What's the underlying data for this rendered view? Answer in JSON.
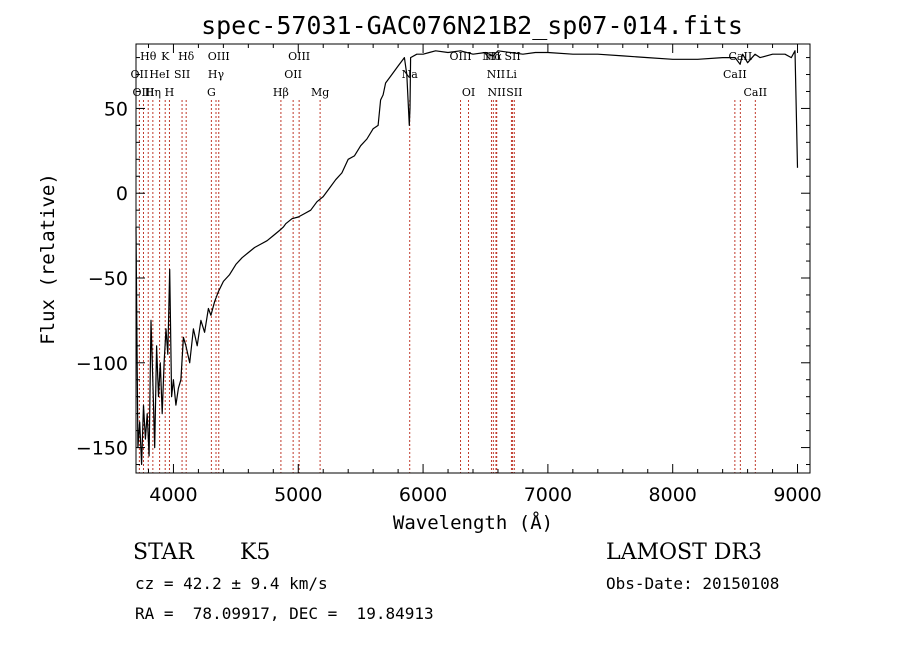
{
  "chart_data": {
    "type": "line",
    "title": "spec-57031-GAC076N21B2_sp07-014.fits",
    "xlabel": "Wavelength (Å)",
    "ylabel": "Flux (relative)",
    "xlim": [
      3700,
      9100
    ],
    "ylim": [
      -165,
      88
    ],
    "xticks": [
      4000,
      5000,
      6000,
      7000,
      8000,
      9000
    ],
    "yticks": [
      -150,
      -100,
      -50,
      0,
      50
    ],
    "series": [
      {
        "x": [
          3700,
          3715,
          3730,
          3745,
          3760,
          3775,
          3790,
          3805,
          3820,
          3835,
          3850,
          3865,
          3880,
          3895,
          3910,
          3925,
          3940,
          3955,
          3970,
          3985,
          4000,
          4020,
          4040,
          4060,
          4080,
          4100,
          4130,
          4160,
          4190,
          4220,
          4250,
          4280,
          4300,
          4330,
          4360,
          4400,
          4450,
          4500,
          4550,
          4600,
          4650,
          4700,
          4750,
          4800,
          4850,
          4880,
          4900,
          4950,
          5000,
          5050,
          5100,
          5150,
          5200,
          5250,
          5300,
          5350,
          5400,
          5450,
          5500,
          5550,
          5600,
          5640,
          5660,
          5680,
          5700,
          5750,
          5800,
          5850,
          5870,
          5890,
          5895,
          5900,
          5950,
          6000,
          6050,
          6100,
          6200,
          6300,
          6400,
          6500,
          6560,
          6600,
          6700,
          6800,
          6900,
          7000,
          7200,
          7400,
          7600,
          7800,
          8000,
          8200,
          8400,
          8500,
          8540,
          8560,
          8600,
          8660,
          8700,
          8800,
          8900,
          8950,
          8980,
          9000
        ],
        "values": [
          -20,
          -150,
          -135,
          -160,
          -125,
          -145,
          -130,
          -155,
          -75,
          -110,
          -150,
          -90,
          -120,
          -100,
          -130,
          -100,
          -80,
          -95,
          -45,
          -120,
          -110,
          -125,
          -115,
          -110,
          -85,
          -90,
          -100,
          -80,
          -90,
          -75,
          -82,
          -68,
          -72,
          -64,
          -58,
          -52,
          -48,
          -42,
          -38,
          -35,
          -32,
          -30,
          -28,
          -25,
          -22,
          -20,
          -18,
          -15,
          -14,
          -12,
          -10,
          -5,
          -2,
          3,
          8,
          12,
          20,
          22,
          28,
          32,
          38,
          40,
          55,
          58,
          65,
          70,
          75,
          80,
          70,
          40,
          50,
          80,
          82,
          82,
          83,
          84,
          83,
          84,
          82,
          83,
          81,
          84,
          83,
          82,
          83,
          83,
          82,
          82,
          81,
          80,
          79,
          79,
          80,
          80,
          76,
          82,
          77,
          82,
          80,
          82,
          82,
          80,
          84,
          15
        ]
      }
    ],
    "spectral_lines": [
      {
        "label": "Hθ",
        "x": 3798,
        "row": 1
      },
      {
        "label": "K",
        "x": 3934,
        "row": 1
      },
      {
        "label": "Hδ",
        "x": 4102,
        "row": 1
      },
      {
        "label": "OIII",
        "x": 4363,
        "row": 1
      },
      {
        "label": "OIII",
        "x": 5007,
        "row": 1
      },
      {
        "label": "OIII",
        "x": 6300,
        "row": 1
      },
      {
        "label": "NII",
        "x": 6548,
        "row": 1
      },
      {
        "label": "Hα",
        "x": 6563,
        "row": 1
      },
      {
        "label": "SII",
        "x": 6717,
        "row": 1
      },
      {
        "label": "CaII",
        "x": 8542,
        "row": 1
      },
      {
        "label": "OII",
        "x": 3727,
        "row": 2
      },
      {
        "label": "HeI",
        "x": 3889,
        "row": 2
      },
      {
        "label": "SII",
        "x": 4069,
        "row": 2
      },
      {
        "label": "Hγ",
        "x": 4341,
        "row": 2
      },
      {
        "label": "OII",
        "x": 4959,
        "row": 2
      },
      {
        "label": "Na",
        "x": 5893,
        "row": 2
      },
      {
        "label": "NII",
        "x": 6584,
        "row": 2
      },
      {
        "label": "Li",
        "x": 6708,
        "row": 2
      },
      {
        "label": "CaII",
        "x": 8498,
        "row": 2
      },
      {
        "label": "OIII",
        "x": 3760,
        "row": 3
      },
      {
        "label": "Hη",
        "x": 3835,
        "row": 3
      },
      {
        "label": "H",
        "x": 3968,
        "row": 3
      },
      {
        "label": "G",
        "x": 4304,
        "row": 3
      },
      {
        "label": "Hβ",
        "x": 4861,
        "row": 3
      },
      {
        "label": "Mg",
        "x": 5175,
        "row": 3
      },
      {
        "label": "OI",
        "x": 6364,
        "row": 3
      },
      {
        "label": "NII",
        "x": 6590,
        "row": 3
      },
      {
        "label": "SII",
        "x": 6731,
        "row": 3
      },
      {
        "label": "CaII",
        "x": 8662,
        "row": 3
      }
    ]
  },
  "info": {
    "object_class": "STAR",
    "subclass": "K5",
    "survey": "LAMOST DR3",
    "cz": "cz = 42.2 ± 9.4 km/s",
    "obs_date": "Obs-Date: 20150108",
    "coords": "RA =  78.09917, DEC =  19.84913"
  },
  "colors": {
    "spectrum": "#000000",
    "line_marker": "#c0392b",
    "text": "#000000"
  }
}
